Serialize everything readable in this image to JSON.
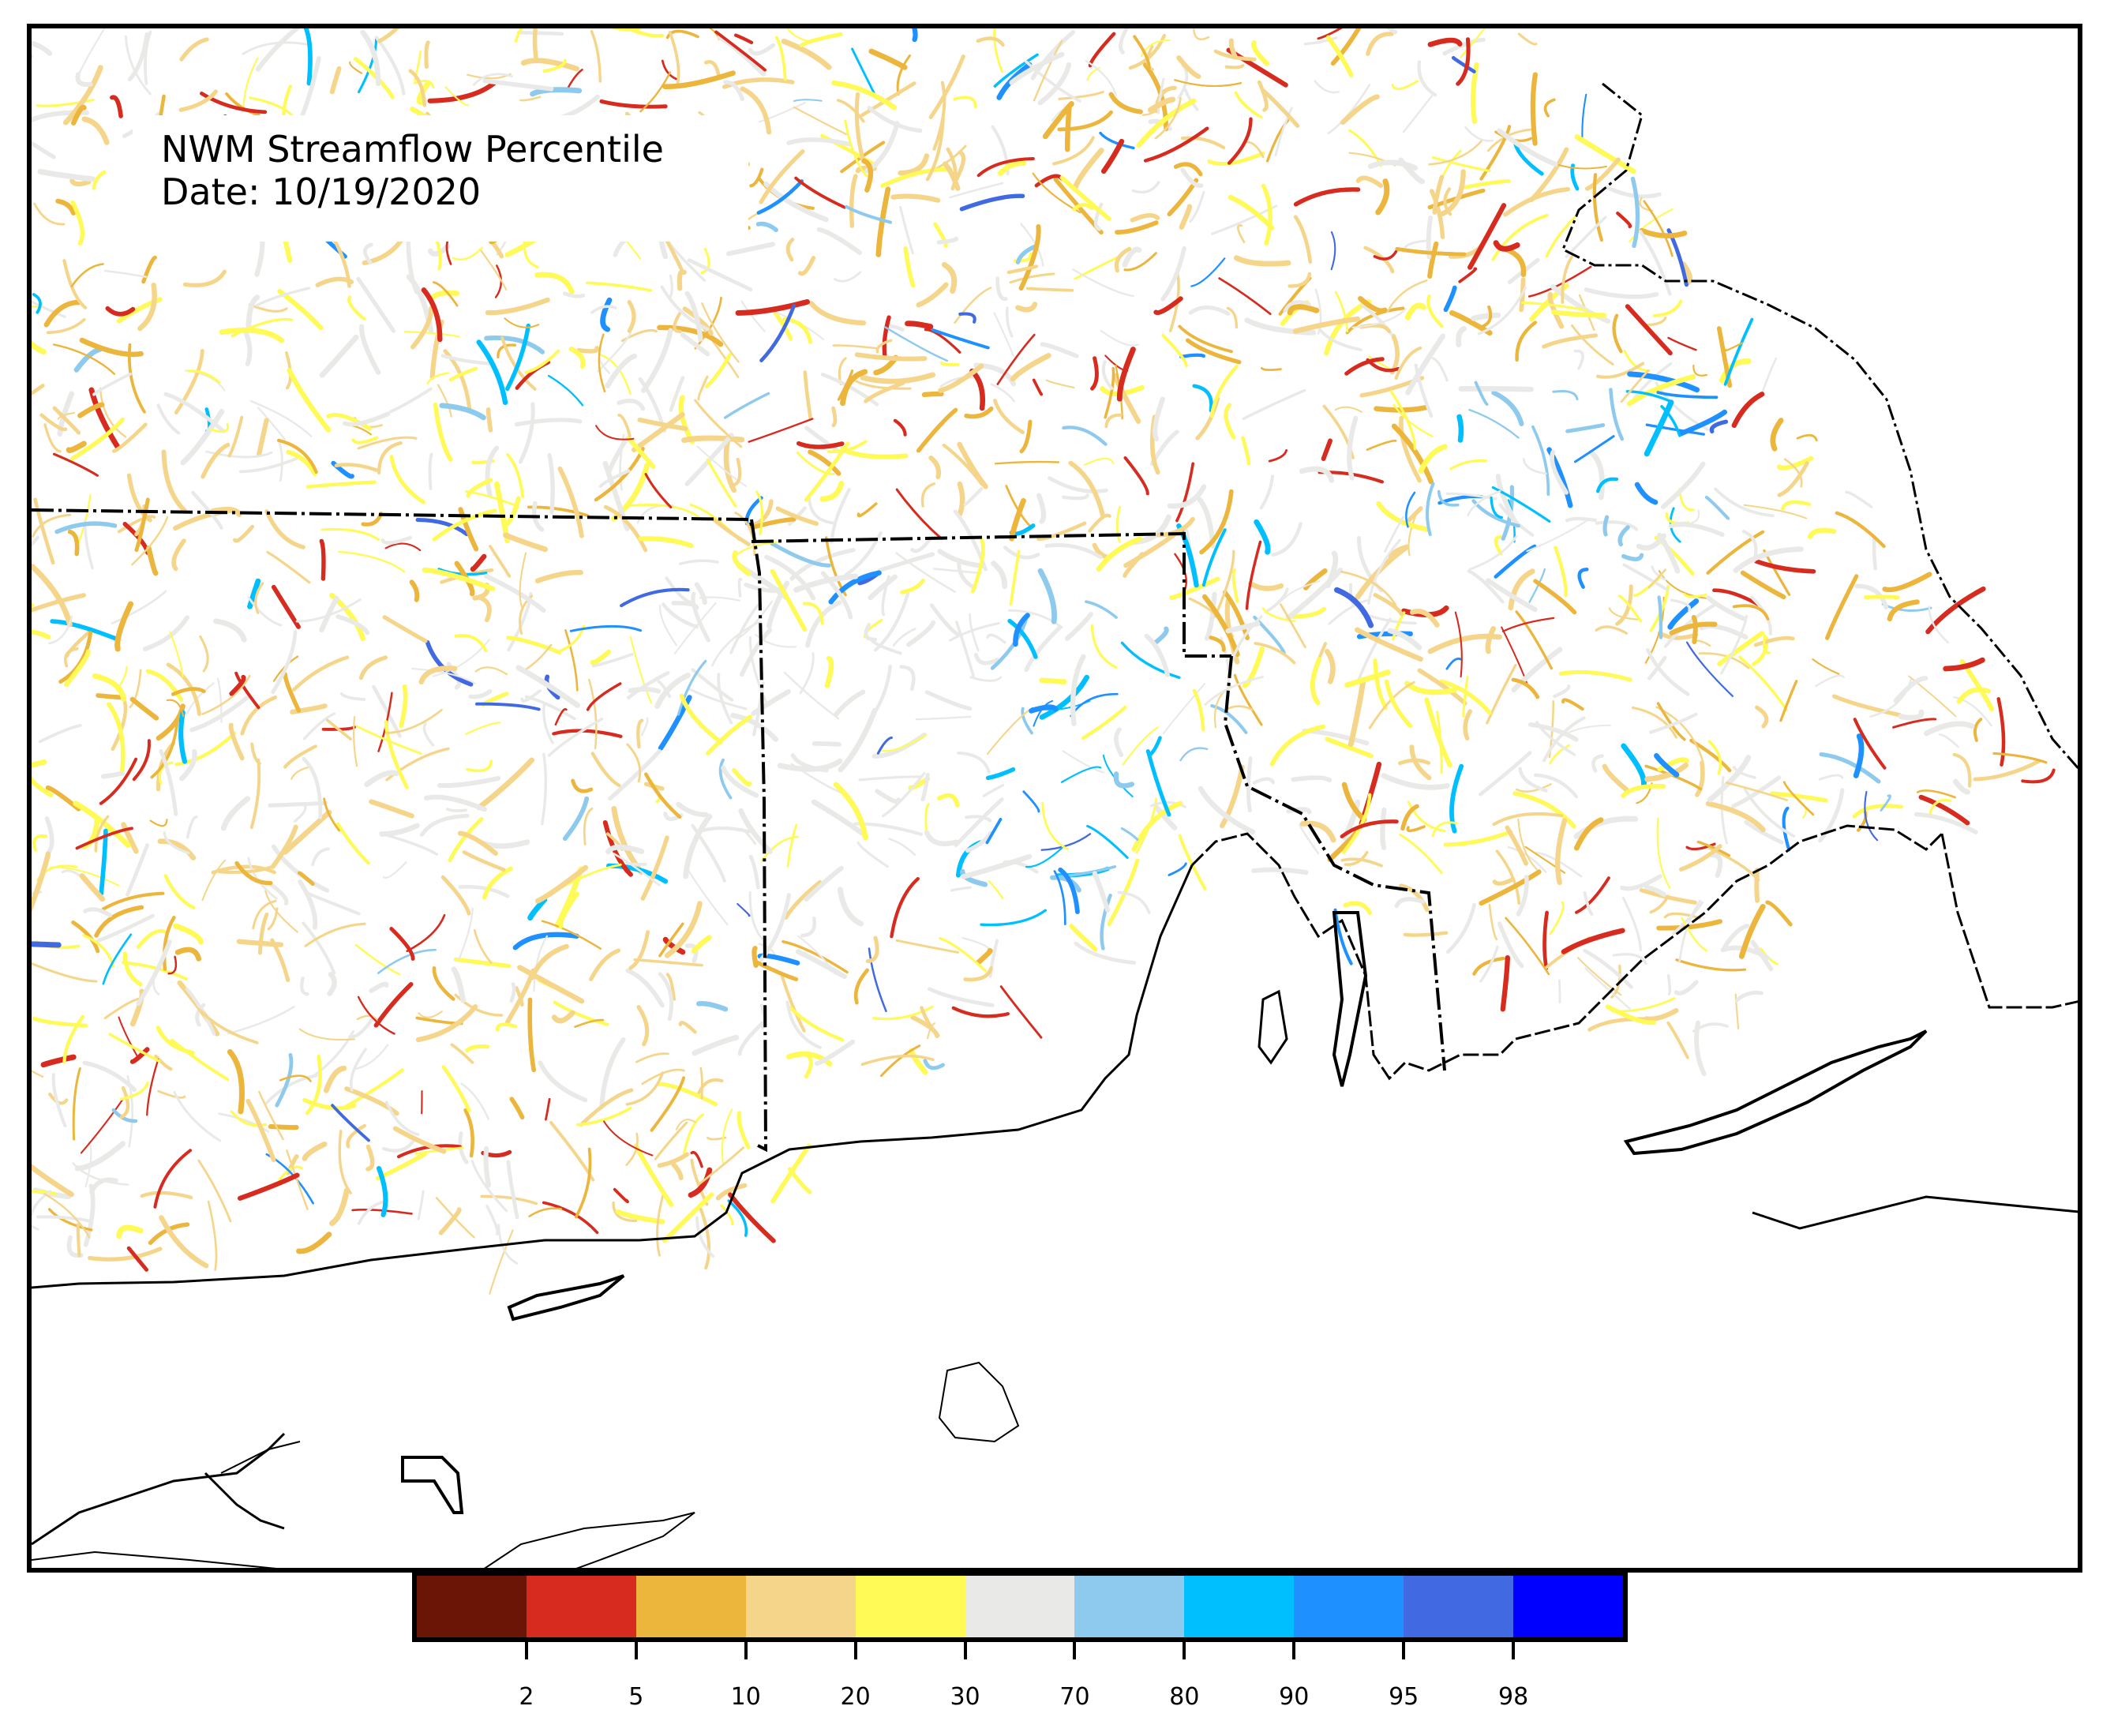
{
  "title": {
    "line1": "NWM Streamflow Percentile",
    "line2": "Date: 10/19/2020"
  },
  "legend": {
    "bins": [
      {
        "color": "#6b1507"
      },
      {
        "color": "#d62b1e"
      },
      {
        "color": "#ecb53c"
      },
      {
        "color": "#f5d58a"
      },
      {
        "color": "#fffa55"
      },
      {
        "color": "#e9e9e7"
      },
      {
        "color": "#8ecaee"
      },
      {
        "color": "#00bfff"
      },
      {
        "color": "#1e90ff"
      },
      {
        "color": "#4169e1"
      },
      {
        "color": "#0000ff"
      }
    ],
    "tick_labels": [
      "2",
      "5",
      "10",
      "20",
      "30",
      "70",
      "80",
      "90",
      "95",
      "98"
    ]
  }
}
